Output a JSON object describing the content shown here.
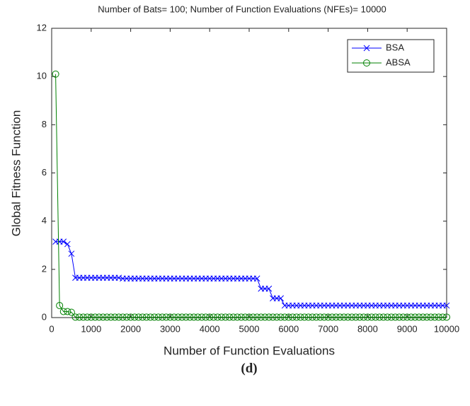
{
  "chart_data": {
    "type": "line",
    "title": "Number of Bats= 100; Number of Function Evaluations (NFEs)= 10000",
    "x_label": "Number of Function Evaluations",
    "y_label": "Global Fitness Function",
    "caption": "(d)",
    "x": [
      100,
      200,
      300,
      400,
      500,
      600,
      700,
      800,
      900,
      1000,
      1100,
      1200,
      1300,
      1400,
      1500,
      1600,
      1700,
      1800,
      1900,
      2000,
      2100,
      2200,
      2300,
      2400,
      2500,
      2600,
      2700,
      2800,
      2900,
      3000,
      3100,
      3200,
      3300,
      3400,
      3500,
      3600,
      3700,
      3800,
      3900,
      4000,
      4100,
      4200,
      4300,
      4400,
      4500,
      4600,
      4700,
      4800,
      4900,
      5000,
      5100,
      5200,
      5300,
      5400,
      5500,
      5600,
      5700,
      5800,
      5900,
      6000,
      6100,
      6200,
      6300,
      6400,
      6500,
      6600,
      6700,
      6800,
      6900,
      7000,
      7100,
      7200,
      7300,
      7400,
      7500,
      7600,
      7700,
      7800,
      7900,
      8000,
      8100,
      8200,
      8300,
      8400,
      8500,
      8600,
      8700,
      8800,
      8900,
      9000,
      9100,
      9200,
      9300,
      9400,
      9500,
      9600,
      9700,
      9800,
      9900,
      10000
    ],
    "series": [
      {
        "name": "BSA",
        "color": "#0000ff",
        "marker": "x",
        "values": [
          3.15,
          3.15,
          3.15,
          3.05,
          2.65,
          1.65,
          1.65,
          1.65,
          1.65,
          1.65,
          1.65,
          1.65,
          1.65,
          1.65,
          1.65,
          1.65,
          1.65,
          1.62,
          1.62,
          1.62,
          1.62,
          1.62,
          1.62,
          1.62,
          1.62,
          1.62,
          1.62,
          1.62,
          1.62,
          1.62,
          1.62,
          1.62,
          1.62,
          1.62,
          1.62,
          1.62,
          1.62,
          1.62,
          1.62,
          1.62,
          1.62,
          1.62,
          1.62,
          1.62,
          1.62,
          1.62,
          1.62,
          1.62,
          1.62,
          1.62,
          1.62,
          1.62,
          1.2,
          1.2,
          1.2,
          0.8,
          0.8,
          0.8,
          0.5,
          0.5,
          0.5,
          0.5,
          0.5,
          0.5,
          0.5,
          0.5,
          0.5,
          0.5,
          0.5,
          0.5,
          0.5,
          0.5,
          0.5,
          0.5,
          0.5,
          0.5,
          0.5,
          0.5,
          0.5,
          0.5,
          0.5,
          0.5,
          0.5,
          0.5,
          0.5,
          0.5,
          0.5,
          0.5,
          0.5,
          0.5,
          0.5,
          0.5,
          0.5,
          0.5,
          0.5,
          0.5,
          0.5,
          0.5,
          0.5,
          0.5
        ]
      },
      {
        "name": "ABSA",
        "color": "#008000",
        "marker": "o",
        "values": [
          10.1,
          0.5,
          0.25,
          0.25,
          0.22,
          0.02,
          0.02,
          0.02,
          0.02,
          0.02,
          0.02,
          0.02,
          0.02,
          0.02,
          0.02,
          0.02,
          0.02,
          0.02,
          0.02,
          0.02,
          0.02,
          0.02,
          0.02,
          0.02,
          0.02,
          0.02,
          0.02,
          0.02,
          0.02,
          0.02,
          0.02,
          0.02,
          0.02,
          0.02,
          0.02,
          0.02,
          0.02,
          0.02,
          0.02,
          0.02,
          0.02,
          0.02,
          0.02,
          0.02,
          0.02,
          0.02,
          0.02,
          0.02,
          0.02,
          0.02,
          0.02,
          0.02,
          0.02,
          0.02,
          0.02,
          0.02,
          0.02,
          0.02,
          0.02,
          0.02,
          0.02,
          0.02,
          0.02,
          0.02,
          0.02,
          0.02,
          0.02,
          0.02,
          0.02,
          0.02,
          0.02,
          0.02,
          0.02,
          0.02,
          0.02,
          0.02,
          0.02,
          0.02,
          0.02,
          0.02,
          0.02,
          0.02,
          0.02,
          0.02,
          0.02,
          0.02,
          0.02,
          0.02,
          0.02,
          0.02,
          0.02,
          0.02,
          0.02,
          0.02,
          0.02,
          0.02,
          0.02,
          0.02,
          0.02,
          0.02
        ]
      }
    ],
    "xlim": [
      0,
      10000
    ],
    "xticks": [
      0,
      1000,
      2000,
      3000,
      4000,
      5000,
      6000,
      7000,
      8000,
      9000,
      10000
    ],
    "ylim": [
      0,
      12
    ],
    "yticks": [
      0,
      2,
      4,
      6,
      8,
      10,
      12
    ],
    "grid": false,
    "legend": "northeast"
  }
}
